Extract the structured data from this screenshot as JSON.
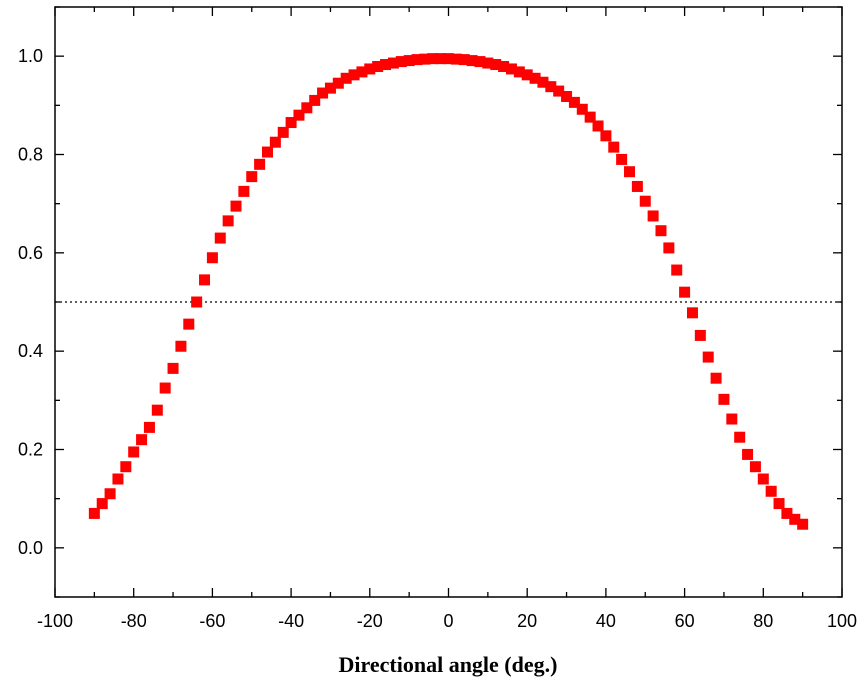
{
  "chart_data": {
    "type": "scatter",
    "title": "",
    "xlabel": "Directional angle (deg.)",
    "ylabel": "",
    "xlim": [
      -100,
      100
    ],
    "ylim": [
      -0.1,
      1.1
    ],
    "x_ticks": [
      -100,
      -80,
      -60,
      -40,
      -20,
      0,
      20,
      40,
      60,
      80,
      100
    ],
    "x_tick_labels": [
      "-100",
      "-80",
      "-60",
      "-40",
      "-20",
      "0",
      "20",
      "40",
      "60",
      "80",
      "100"
    ],
    "y_ticks": [
      0.0,
      0.2,
      0.4,
      0.6,
      0.8,
      1.0
    ],
    "y_tick_labels": [
      "0.0",
      "0.2",
      "0.4",
      "0.6",
      "0.8",
      "1.0"
    ],
    "reference_line": {
      "y": 0.5,
      "style": "dotted"
    },
    "marker": "square",
    "color": "#ff0000",
    "series": [
      {
        "x": [
          -90,
          -88,
          -86,
          -84,
          -82,
          -80,
          -78,
          -76,
          -74,
          -72,
          -70,
          -68,
          -66,
          -64,
          -62,
          -60,
          -58,
          -56,
          -54,
          -52,
          -50,
          -48,
          -46,
          -44,
          -42,
          -40,
          -38,
          -36,
          -34,
          -32,
          -30,
          -28,
          -26,
          -24,
          -22,
          -20,
          -18,
          -16,
          -14,
          -12,
          -10,
          -8,
          -6,
          -4,
          -2,
          0,
          2,
          4,
          6,
          8,
          10,
          12,
          14,
          16,
          18,
          20,
          22,
          24,
          26,
          28,
          30,
          32,
          34,
          36,
          38,
          40,
          42,
          44,
          46,
          48,
          50,
          52,
          54,
          56,
          58,
          60,
          62,
          64,
          66,
          68,
          70,
          72,
          74,
          76,
          78,
          80,
          82,
          84,
          86,
          88,
          90
        ],
        "y": [
          0.07,
          0.09,
          0.11,
          0.14,
          0.165,
          0.195,
          0.22,
          0.245,
          0.28,
          0.325,
          0.365,
          0.41,
          0.455,
          0.5,
          0.545,
          0.59,
          0.63,
          0.665,
          0.695,
          0.725,
          0.755,
          0.78,
          0.805,
          0.825,
          0.845,
          0.865,
          0.88,
          0.895,
          0.91,
          0.925,
          0.935,
          0.945,
          0.955,
          0.962,
          0.968,
          0.974,
          0.979,
          0.983,
          0.986,
          0.989,
          0.991,
          0.993,
          0.994,
          0.995,
          0.995,
          0.995,
          0.994,
          0.993,
          0.991,
          0.989,
          0.986,
          0.983,
          0.979,
          0.974,
          0.968,
          0.962,
          0.955,
          0.947,
          0.938,
          0.929,
          0.918,
          0.906,
          0.892,
          0.876,
          0.858,
          0.838,
          0.815,
          0.79,
          0.765,
          0.735,
          0.705,
          0.675,
          0.645,
          0.61,
          0.565,
          0.52,
          0.478,
          0.432,
          0.388,
          0.345,
          0.302,
          0.262,
          0.225,
          0.19,
          0.165,
          0.14,
          0.115,
          0.09,
          0.07,
          0.058,
          0.048
        ]
      }
    ]
  }
}
